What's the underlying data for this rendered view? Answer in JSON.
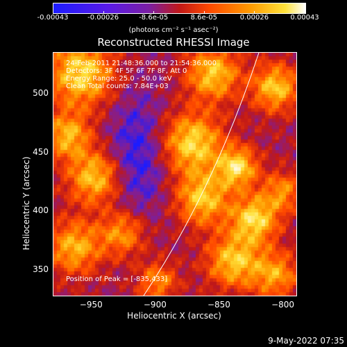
{
  "colorbar": {
    "ticks": [
      "-0.00043",
      "-0.00026",
      "-8.6e-05",
      "8.6e-05",
      "0.00026",
      "0.00043"
    ],
    "unit": "(photons cm⁻² s⁻¹ asec⁻²)",
    "colors": [
      "#1c1cff",
      "#7b1fa2",
      "#c01818",
      "#ff4a00",
      "#ff9a00",
      "#ffe23a",
      "#ffffff"
    ]
  },
  "chart_data": {
    "type": "heatmap",
    "title": "Reconstructed RHESSI Image",
    "xlabel": "Heliocentric X (arcsec)",
    "ylabel": "Heliocentric Y (arcsec)",
    "xlim": [
      -980,
      -790
    ],
    "ylim": [
      328,
      535
    ],
    "x_ticks": [
      "−950",
      "−900",
      "−850",
      "−800"
    ],
    "y_ticks": [
      "350",
      "400",
      "450",
      "500"
    ],
    "color_range": [
      -0.00043,
      0.00043
    ],
    "peak_position": [
      -835,
      433
    ],
    "annotations": [
      "24-Feb-2011 21:48:36.000 to 21:54:36.000",
      "Detectors: 3F 4F 5F 6F 7F 8F, Att 0",
      "Energy Range: 25.0 - 50.0 keV",
      "Clean    Total counts: 7.84E+03"
    ],
    "peak_label": "Position of Peak = [-835,433]"
  },
  "footer": {
    "date": "9-May-2022 07:35"
  }
}
